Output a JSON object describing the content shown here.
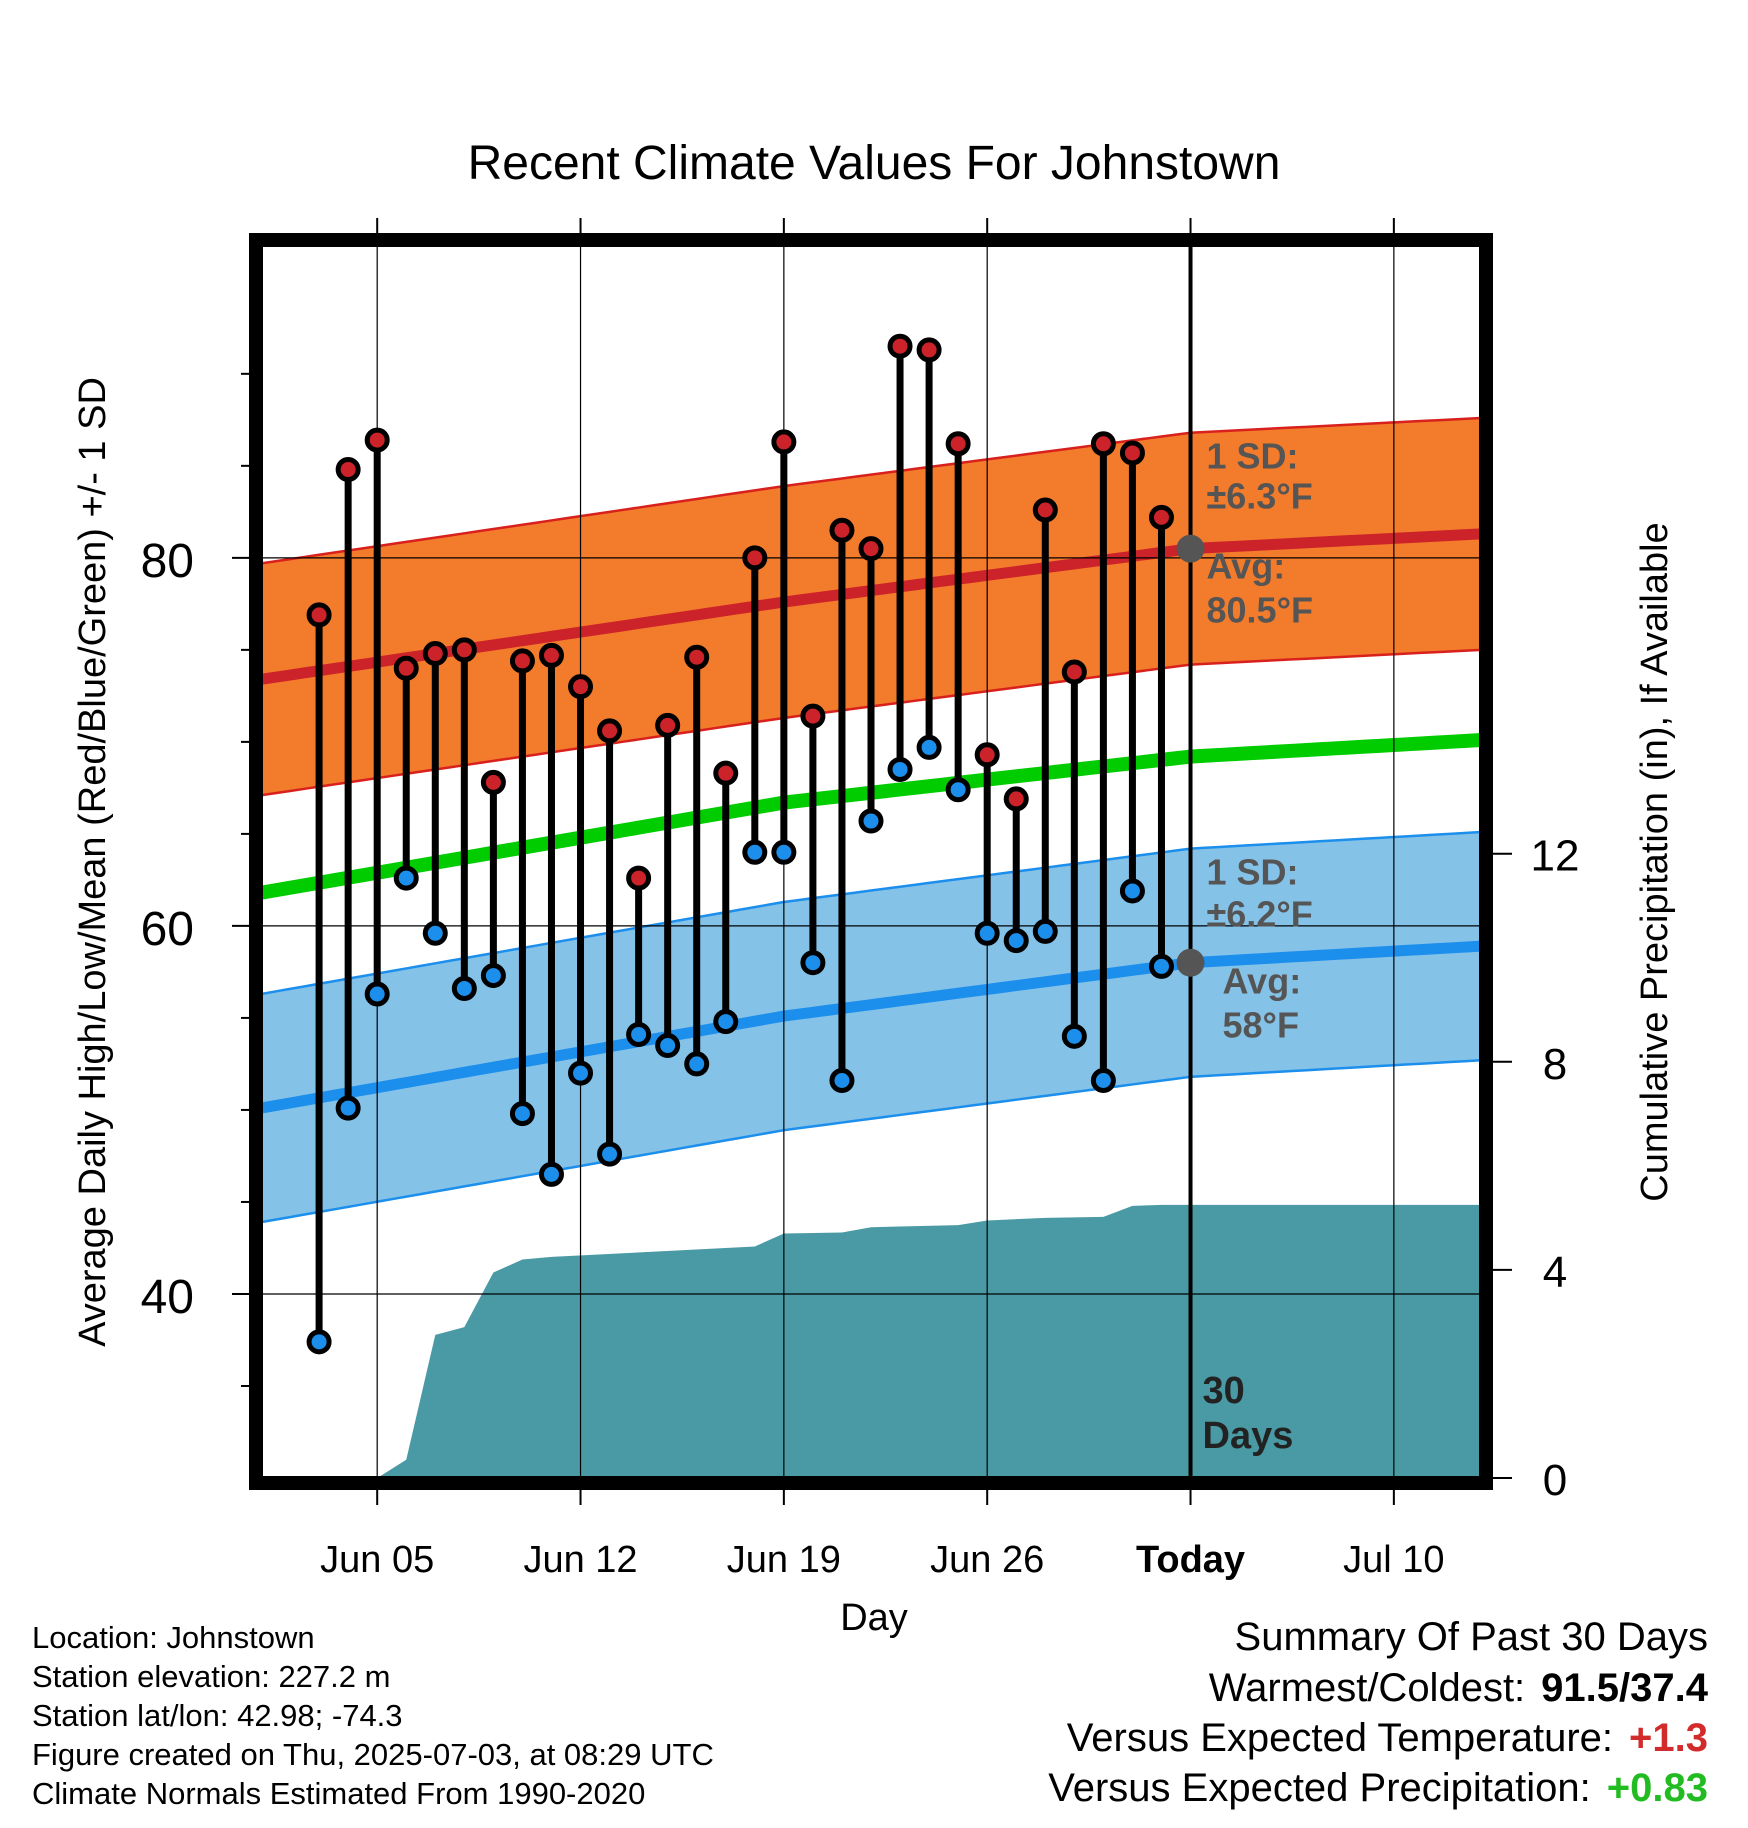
{
  "chart_data": {
    "type": "line",
    "title": "Recent Climate Values For Johnstown",
    "xlabel": "Day",
    "ylabel": "Average Daily High/Low/Mean (Red/Blue/Green) +/- 1 SD",
    "y2label": "Cumulative Precipitation (in), If Available",
    "xlim": [
      "2025-06-01",
      "2025-07-13"
    ],
    "ylim": [
      30,
      97
    ],
    "y2lim": [
      0,
      23.7
    ],
    "x_ticks": [
      "Jun 05",
      "Jun 12",
      "Jun 19",
      "Jun 26",
      "Today",
      "Jul 10"
    ],
    "x_tick_dates": [
      "2025-06-05",
      "2025-06-12",
      "2025-06-19",
      "2025-06-26",
      "2025-07-03",
      "2025-07-10"
    ],
    "y_ticks": [
      40,
      60,
      80
    ],
    "y2_ticks": [
      0,
      4,
      8,
      12
    ],
    "today_date": "2025-07-03",
    "today_label": "30 Days",
    "grid": true,
    "series": [
      {
        "name": "Daily High",
        "color": "#cc2229",
        "dates": [
          "2025-06-03",
          "2025-06-04",
          "2025-06-05",
          "2025-06-06",
          "2025-06-07",
          "2025-06-08",
          "2025-06-09",
          "2025-06-10",
          "2025-06-11",
          "2025-06-12",
          "2025-06-13",
          "2025-06-14",
          "2025-06-15",
          "2025-06-16",
          "2025-06-17",
          "2025-06-18",
          "2025-06-19",
          "2025-06-20",
          "2025-06-21",
          "2025-06-22",
          "2025-06-23",
          "2025-06-24",
          "2025-06-25",
          "2025-06-26",
          "2025-06-27",
          "2025-06-28",
          "2025-06-29",
          "2025-06-30",
          "2025-07-01",
          "2025-07-02"
        ],
        "values": [
          76.9,
          84.8,
          86.4,
          74.0,
          74.8,
          75.0,
          67.8,
          74.4,
          74.7,
          73.0,
          70.6,
          62.6,
          70.9,
          74.6,
          68.3,
          80.0,
          86.3,
          71.4,
          81.5,
          80.5,
          91.5,
          91.3,
          86.2,
          69.3,
          66.9,
          82.6,
          73.8,
          86.2,
          85.7,
          82.2
        ]
      },
      {
        "name": "Daily Low",
        "color": "#1c8fec",
        "dates": [
          "2025-06-03",
          "2025-06-04",
          "2025-06-05",
          "2025-06-06",
          "2025-06-07",
          "2025-06-08",
          "2025-06-09",
          "2025-06-10",
          "2025-06-11",
          "2025-06-12",
          "2025-06-13",
          "2025-06-14",
          "2025-06-15",
          "2025-06-16",
          "2025-06-17",
          "2025-06-18",
          "2025-06-19",
          "2025-06-20",
          "2025-06-21",
          "2025-06-22",
          "2025-06-23",
          "2025-06-24",
          "2025-06-25",
          "2025-06-26",
          "2025-06-27",
          "2025-06-28",
          "2025-06-29",
          "2025-06-30",
          "2025-07-01",
          "2025-07-02"
        ],
        "values": [
          37.4,
          50.1,
          56.3,
          62.6,
          59.6,
          56.6,
          57.3,
          49.8,
          46.5,
          52.0,
          47.6,
          54.1,
          53.5,
          52.5,
          54.8,
          64.0,
          64.0,
          58.0,
          51.6,
          65.7,
          68.5,
          69.7,
          67.4,
          59.6,
          59.2,
          59.7,
          54.0,
          51.6,
          61.9,
          57.8
        ]
      },
      {
        "name": "Normal High",
        "color": "#cc2229",
        "dates": [
          "2025-06-01",
          "2025-06-19",
          "2025-07-03",
          "2025-07-13"
        ],
        "values": [
          73.4,
          77.6,
          80.5,
          81.3
        ]
      },
      {
        "name": "Normal Mean",
        "color": "#00cc00",
        "dates": [
          "2025-06-01",
          "2025-06-19",
          "2025-07-03",
          "2025-07-13"
        ],
        "values": [
          61.8,
          66.7,
          69.2,
          70.1
        ]
      },
      {
        "name": "Normal Low",
        "color": "#1c8fec",
        "dates": [
          "2025-06-01",
          "2025-06-19",
          "2025-07-03",
          "2025-07-13"
        ],
        "values": [
          50.1,
          55.1,
          58.0,
          58.9
        ]
      },
      {
        "name": "Cumulative Precipitation",
        "color": "#4a9aa5",
        "dates": [
          "2025-06-04",
          "2025-06-05",
          "2025-06-06",
          "2025-06-07",
          "2025-06-08",
          "2025-06-09",
          "2025-06-10",
          "2025-06-11",
          "2025-06-18",
          "2025-06-19",
          "2025-06-21",
          "2025-06-22",
          "2025-06-25",
          "2025-06-26",
          "2025-06-28",
          "2025-06-30",
          "2025-07-01",
          "2025-07-02",
          "2025-07-13"
        ],
        "values": [
          0,
          0.0,
          0.35,
          2.75,
          2.9,
          3.95,
          4.2,
          4.25,
          4.45,
          4.7,
          4.72,
          4.82,
          4.86,
          4.95,
          5.0,
          5.02,
          5.23,
          5.25,
          5.25
        ]
      }
    ],
    "bands": [
      {
        "name": "High ± 1 SD",
        "sd": 6.3,
        "color": "#f37b2c",
        "edge_color": "#d8201c"
      },
      {
        "name": "Low ± 1 SD",
        "sd": 6.2,
        "color": "#85c2e8",
        "edge_color": "#1c8fec"
      }
    ],
    "annotations": {
      "high_sd_label": "1 SD:",
      "high_sd_value": "±6.3°F",
      "high_avg_label": "Avg:",
      "high_avg_value": "80.5°F",
      "low_sd_label": "1 SD:",
      "low_sd_value": "±6.2°F",
      "low_avg_label": "Avg:",
      "low_avg_value": "58°F"
    }
  },
  "station_info": [
    "Location: Johnstown",
    "Station elevation: 227.2 m",
    "Station lat/lon: 42.98; -74.3",
    "Figure created on Thu, 2025-07-03, at 08:29 UTC",
    "Climate Normals Estimated From 1990-2020"
  ],
  "summary": {
    "title": "Summary Of Past 30 Days",
    "warm_cold_label": "Warmest/Coldest:",
    "warm_cold_value": "91.5/37.4",
    "temp_label": "Versus Expected Temperature:",
    "temp_value": "+1.3",
    "temp_color": "#d22b2b",
    "precip_label": "Versus Expected Precipitation:",
    "precip_value": "+0.83",
    "precip_color": "#22bb22"
  }
}
